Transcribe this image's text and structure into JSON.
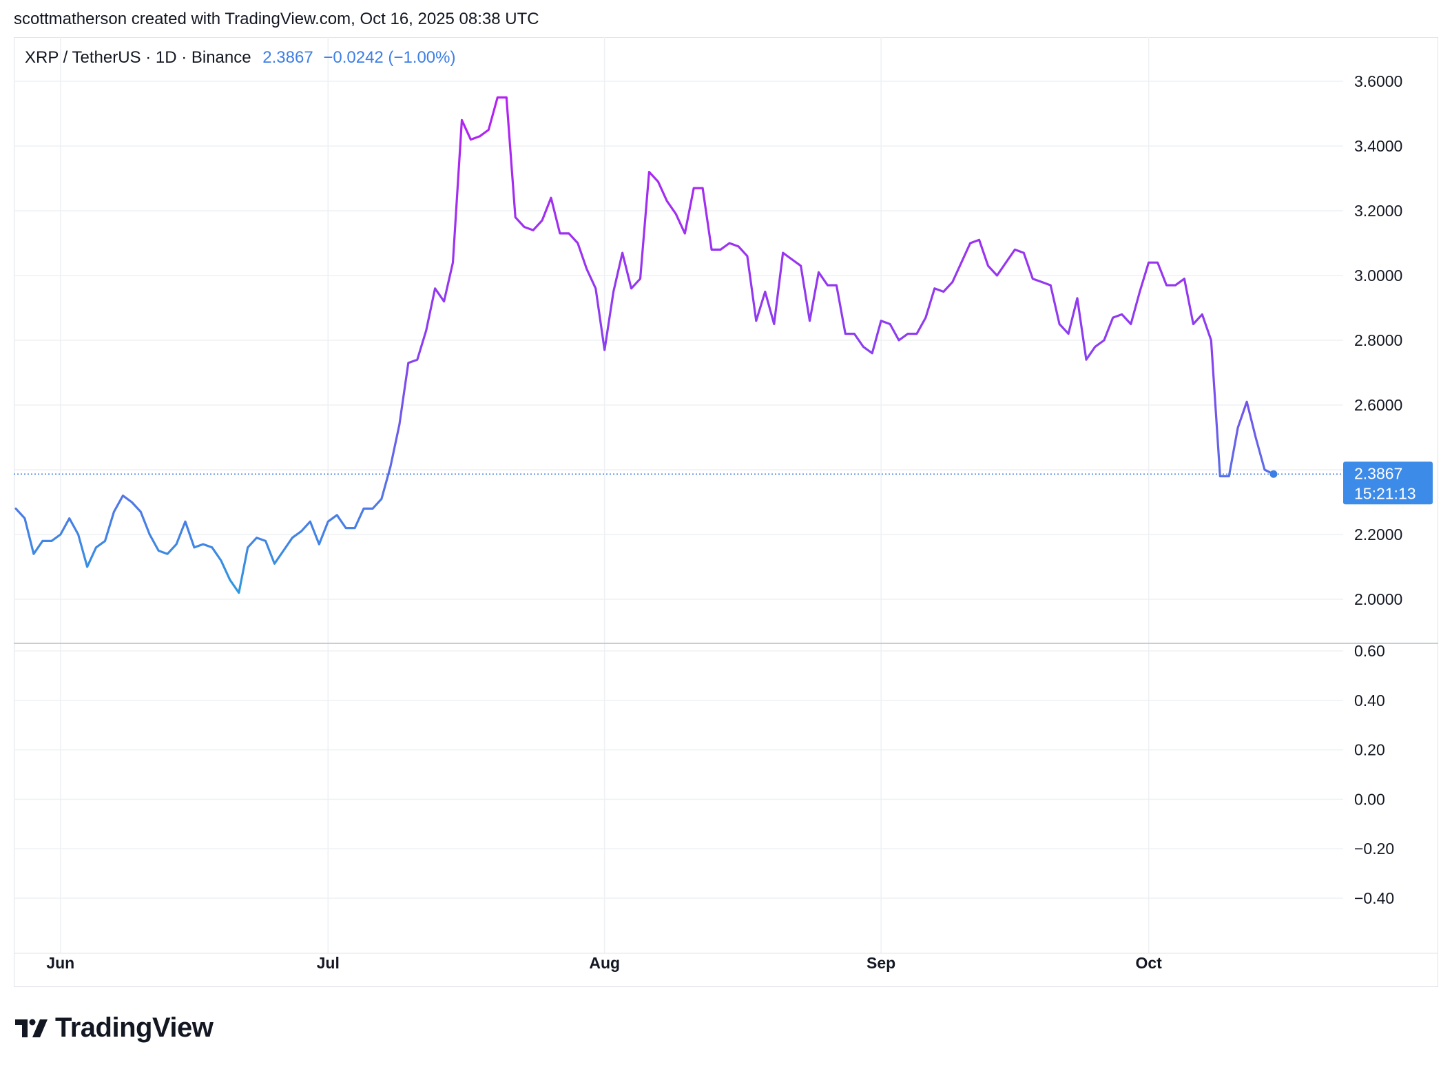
{
  "header": {
    "attribution": "scottmatherson created with TradingView.com, Oct 16, 2025 08:38 UTC"
  },
  "legend": {
    "symbol": "XRP / TetherUS · 1D · Binance",
    "price": "2.3867",
    "change": "−0.0242 (−1.00%)"
  },
  "price_tag": {
    "price": "2.3867",
    "countdown": "15:21:13"
  },
  "footer": {
    "brand": "TradingView"
  },
  "colors": {
    "line_low": "#2b9be0",
    "line_mid": "#8a3ff0",
    "line_high": "#b421f2",
    "tag_bg": "#3d8be8",
    "grid": "#eef0f3",
    "axis_text": "#131722"
  },
  "chart_data": [
    {
      "type": "line",
      "title": "XRP / TetherUS · 1D · Binance",
      "xlabel": "",
      "ylabel": "",
      "x_tick_labels": [
        "Jun",
        "Jul",
        "Aug",
        "Sep",
        "Oct"
      ],
      "y_tick_labels": [
        "3.6000",
        "3.4000",
        "3.2000",
        "3.0000",
        "2.8000",
        "2.6000",
        "2.2000",
        "2.0000"
      ],
      "ylim": [
        1.87,
        3.72
      ],
      "grid": true,
      "x_start": "2025-05-27",
      "series": [
        {
          "values": [
            2.28,
            2.25,
            2.14,
            2.18,
            2.18,
            2.2,
            2.25,
            2.2,
            2.1,
            2.16,
            2.18,
            2.27,
            2.32,
            2.3,
            2.27,
            2.2,
            2.15,
            2.14,
            2.17,
            2.24,
            2.16,
            2.17,
            2.16,
            2.12,
            2.06,
            2.02,
            2.16,
            2.19,
            2.18,
            2.11,
            2.15,
            2.19,
            2.21,
            2.24,
            2.17,
            2.24,
            2.26,
            2.22,
            2.22,
            2.28,
            2.28,
            2.31,
            2.41,
            2.54,
            2.73,
            2.74,
            2.83,
            2.96,
            2.92,
            3.04,
            3.48,
            3.42,
            3.43,
            3.45,
            3.55,
            3.55,
            3.18,
            3.15,
            3.14,
            3.17,
            3.24,
            3.13,
            3.13,
            3.1,
            3.02,
            2.96,
            2.77,
            2.95,
            3.07,
            2.96,
            2.99,
            3.32,
            3.29,
            3.23,
            3.19,
            3.13,
            3.27,
            3.27,
            3.08,
            3.08,
            3.1,
            3.09,
            3.06,
            2.86,
            2.95,
            2.85,
            3.07,
            3.05,
            3.03,
            2.86,
            3.01,
            2.97,
            2.97,
            2.82,
            2.82,
            2.78,
            2.76,
            2.86,
            2.85,
            2.8,
            2.82,
            2.82,
            2.87,
            2.96,
            2.95,
            2.98,
            3.04,
            3.1,
            3.11,
            3.03,
            3.0,
            3.04,
            3.08,
            3.07,
            2.99,
            2.98,
            2.97,
            2.85,
            2.82,
            2.93,
            2.74,
            2.78,
            2.8,
            2.87,
            2.88,
            2.85,
            2.95,
            3.04,
            3.04,
            2.97,
            2.97,
            2.99,
            2.85,
            2.88,
            2.8,
            2.38,
            2.38,
            2.53,
            2.61,
            2.5,
            2.4,
            2.3867
          ]
        }
      ]
    },
    {
      "type": "line",
      "title": "",
      "y_tick_labels": [
        "0.60",
        "0.40",
        "0.20",
        "0.00",
        "−0.20",
        "−0.40"
      ],
      "ylim": [
        -0.61,
        0.67
      ],
      "grid": true,
      "series": []
    }
  ]
}
